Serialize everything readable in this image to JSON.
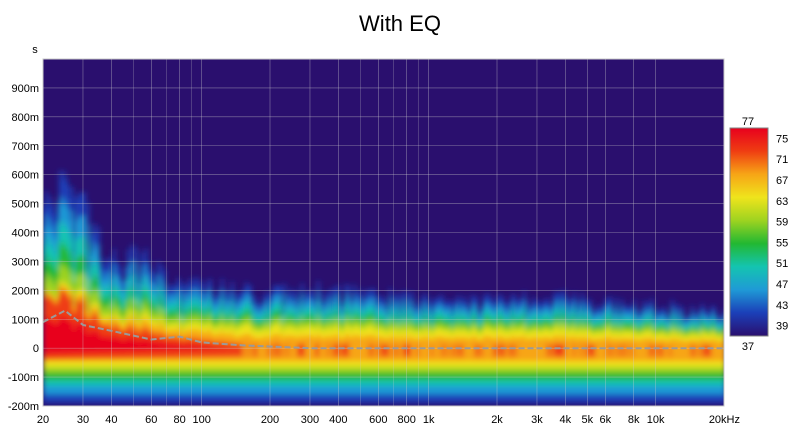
{
  "chart_data": {
    "type": "heatmap",
    "title": "With EQ",
    "ylabel": "s",
    "x_scale": "log",
    "xlim": [
      20,
      20000
    ],
    "ylim": [
      -0.2,
      1.0
    ],
    "grid": true,
    "x_ticks": [
      {
        "value": 20,
        "label": "20"
      },
      {
        "value": 30,
        "label": "30"
      },
      {
        "value": 40,
        "label": "40"
      },
      {
        "value": 60,
        "label": "60"
      },
      {
        "value": 80,
        "label": "80"
      },
      {
        "value": 100,
        "label": "100"
      },
      {
        "value": 200,
        "label": "200"
      },
      {
        "value": 300,
        "label": "300"
      },
      {
        "value": 400,
        "label": "400"
      },
      {
        "value": 600,
        "label": "600"
      },
      {
        "value": 800,
        "label": "800"
      },
      {
        "value": 1000,
        "label": "1k"
      },
      {
        "value": 2000,
        "label": "2k"
      },
      {
        "value": 3000,
        "label": "3k"
      },
      {
        "value": 4000,
        "label": "4k"
      },
      {
        "value": 5000,
        "label": "5k"
      },
      {
        "value": 6000,
        "label": "6k"
      },
      {
        "value": 8000,
        "label": "8k"
      },
      {
        "value": 10000,
        "label": "10k"
      },
      {
        "value": 20000,
        "label": "20kHz"
      }
    ],
    "y_ticks": [
      {
        "value": 0.9,
        "label": "900m"
      },
      {
        "value": 0.8,
        "label": "800m"
      },
      {
        "value": 0.7,
        "label": "700m"
      },
      {
        "value": 0.6,
        "label": "600m"
      },
      {
        "value": 0.5,
        "label": "500m"
      },
      {
        "value": 0.4,
        "label": "400m"
      },
      {
        "value": 0.3,
        "label": "300m"
      },
      {
        "value": 0.2,
        "label": "200m"
      },
      {
        "value": 0.1,
        "label": "100m"
      },
      {
        "value": 0.0,
        "label": "0"
      },
      {
        "value": -0.1,
        "label": "-100m"
      },
      {
        "value": -0.2,
        "label": "-200m"
      }
    ],
    "colorbar": {
      "min_label": "37",
      "max_label": "77",
      "range": [
        37,
        77
      ],
      "tick_values": [
        75,
        71,
        67,
        63,
        59,
        55,
        51,
        47,
        43,
        39
      ],
      "tick_labels": [
        "75",
        "71",
        "67",
        "63",
        "59",
        "55",
        "51",
        "47",
        "43",
        "39"
      ],
      "colors": [
        "#2a0f6e",
        "#1b3fb8",
        "#1f9ad6",
        "#14c4b0",
        "#22b832",
        "#9ed320",
        "#efe41c",
        "#f7a516",
        "#ef3d12",
        "#e8001e"
      ]
    },
    "background_color": "#2a0f6e",
    "decay_top": [
      {
        "x": 20,
        "y": 0.5
      },
      {
        "x": 25,
        "y": 0.55
      },
      {
        "x": 30,
        "y": 0.45
      },
      {
        "x": 40,
        "y": 0.3
      },
      {
        "x": 60,
        "y": 0.3
      },
      {
        "x": 80,
        "y": 0.2
      },
      {
        "x": 100,
        "y": 0.22
      },
      {
        "x": 200,
        "y": 0.18
      },
      {
        "x": 300,
        "y": 0.2
      },
      {
        "x": 1000,
        "y": 0.16
      },
      {
        "x": 5000,
        "y": 0.17
      },
      {
        "x": 20000,
        "y": 0.12
      }
    ],
    "peak_delay": [
      {
        "x": 20,
        "y": 0.09
      },
      {
        "x": 25,
        "y": 0.13
      },
      {
        "x": 30,
        "y": 0.08
      },
      {
        "x": 40,
        "y": 0.06
      },
      {
        "x": 60,
        "y": 0.03
      },
      {
        "x": 80,
        "y": 0.04
      },
      {
        "x": 100,
        "y": 0.02
      },
      {
        "x": 150,
        "y": 0.01
      },
      {
        "x": 300,
        "y": 0.0
      },
      {
        "x": 1000,
        "y": 0.0
      },
      {
        "x": 20000,
        "y": 0.0
      }
    ]
  }
}
